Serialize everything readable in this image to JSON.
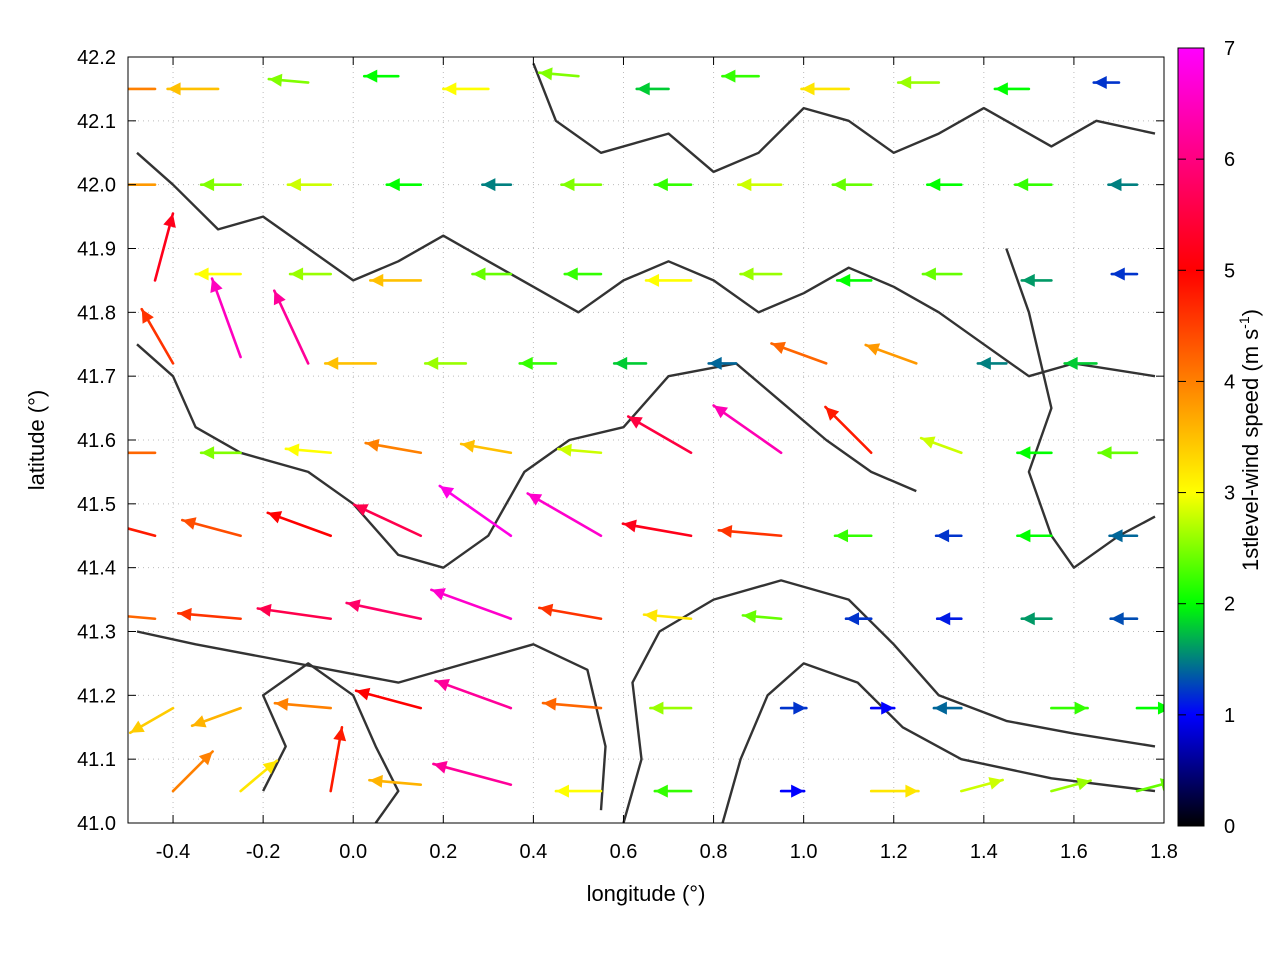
{
  "chart_data": {
    "type": "vector-field",
    "xlabel": "longitude (°)",
    "ylabel": "latitude (°)",
    "xlim": [
      -0.5,
      1.8
    ],
    "ylim": [
      41.0,
      42.2
    ],
    "xticks": [
      -0.4,
      -0.2,
      0.0,
      0.2,
      0.4,
      0.6,
      0.8,
      1.0,
      1.2,
      1.4,
      1.6,
      1.8
    ],
    "xtick_labels": [
      "-0.4",
      "-0.2",
      "0.0",
      "0.2",
      "0.4",
      "0.6",
      "0.8",
      "1.0",
      "1.2",
      "1.4",
      "1.6",
      "1.8"
    ],
    "yticks": [
      41.0,
      41.1,
      41.2,
      41.3,
      41.4,
      41.5,
      41.6,
      41.7,
      41.8,
      41.9,
      42.0,
      42.1,
      42.2
    ],
    "ytick_labels": [
      "41.0",
      "41.1",
      "41.2",
      "41.3",
      "41.4",
      "41.5",
      "41.6",
      "41.7",
      "41.8",
      "41.9",
      "42.0",
      "42.1",
      "42.2"
    ],
    "grid": true,
    "colorbar": {
      "label_text": "1stlevel-wind speed (m s",
      "label_sup": "-1",
      "label_close": ")",
      "range": [
        0,
        7
      ],
      "ticks": [
        0,
        1,
        2,
        3,
        4,
        5,
        6,
        7
      ],
      "tick_labels": [
        "0",
        "1",
        "2",
        "3",
        "4",
        "5",
        "6",
        "7"
      ],
      "colors": [
        "#000000",
        "#0000ff",
        "#00ff00",
        "#ffff00",
        "#ff8000",
        "#ff0000",
        "#ff00ff"
      ]
    },
    "vectors": [
      {
        "lon": -0.44,
        "lat": 42.15,
        "speed": 4.0,
        "dir": 180
      },
      {
        "lon": -0.3,
        "lat": 42.15,
        "speed": 3.5,
        "dir": 180
      },
      {
        "lon": -0.1,
        "lat": 42.16,
        "speed": 2.5,
        "dir": 175
      },
      {
        "lon": 0.1,
        "lat": 42.17,
        "speed": 2.0,
        "dir": 180
      },
      {
        "lon": 0.3,
        "lat": 42.15,
        "speed": 3.0,
        "dir": 180
      },
      {
        "lon": 0.5,
        "lat": 42.17,
        "speed": 2.5,
        "dir": 175
      },
      {
        "lon": 0.7,
        "lat": 42.15,
        "speed": 1.8,
        "dir": 180
      },
      {
        "lon": 0.9,
        "lat": 42.17,
        "speed": 2.2,
        "dir": 180
      },
      {
        "lon": 1.1,
        "lat": 42.15,
        "speed": 3.2,
        "dir": 180
      },
      {
        "lon": 1.3,
        "lat": 42.16,
        "speed": 2.6,
        "dir": 180
      },
      {
        "lon": 1.5,
        "lat": 42.15,
        "speed": 2.0,
        "dir": 180
      },
      {
        "lon": 1.7,
        "lat": 42.16,
        "speed": 1.2,
        "dir": 180
      },
      {
        "lon": -0.44,
        "lat": 42.0,
        "speed": 3.8,
        "dir": 180
      },
      {
        "lon": -0.25,
        "lat": 42.0,
        "speed": 2.5,
        "dir": 180
      },
      {
        "lon": -0.05,
        "lat": 42.0,
        "speed": 2.8,
        "dir": 180
      },
      {
        "lon": 0.15,
        "lat": 42.0,
        "speed": 2.0,
        "dir": 180
      },
      {
        "lon": 0.35,
        "lat": 42.0,
        "speed": 1.5,
        "dir": 180
      },
      {
        "lon": 0.55,
        "lat": 42.0,
        "speed": 2.5,
        "dir": 180
      },
      {
        "lon": 0.75,
        "lat": 42.0,
        "speed": 2.2,
        "dir": 180
      },
      {
        "lon": 0.95,
        "lat": 42.0,
        "speed": 2.8,
        "dir": 180
      },
      {
        "lon": 1.15,
        "lat": 42.0,
        "speed": 2.4,
        "dir": 180
      },
      {
        "lon": 1.35,
        "lat": 42.0,
        "speed": 2.0,
        "dir": 180
      },
      {
        "lon": 1.55,
        "lat": 42.0,
        "speed": 2.2,
        "dir": 180
      },
      {
        "lon": 1.74,
        "lat": 42.0,
        "speed": 1.5,
        "dir": 180
      },
      {
        "lon": -0.44,
        "lat": 41.85,
        "speed": 5.2,
        "dir": 75
      },
      {
        "lon": -0.25,
        "lat": 41.86,
        "speed": 3.0,
        "dir": 180
      },
      {
        "lon": -0.05,
        "lat": 41.86,
        "speed": 2.6,
        "dir": 180
      },
      {
        "lon": 0.15,
        "lat": 41.85,
        "speed": 3.5,
        "dir": 180
      },
      {
        "lon": 0.35,
        "lat": 41.86,
        "speed": 2.4,
        "dir": 180
      },
      {
        "lon": 0.55,
        "lat": 41.86,
        "speed": 2.2,
        "dir": 180
      },
      {
        "lon": 0.75,
        "lat": 41.85,
        "speed": 3.0,
        "dir": 180
      },
      {
        "lon": 0.95,
        "lat": 41.86,
        "speed": 2.6,
        "dir": 180
      },
      {
        "lon": 1.15,
        "lat": 41.85,
        "speed": 2.0,
        "dir": 180
      },
      {
        "lon": 1.35,
        "lat": 41.86,
        "speed": 2.4,
        "dir": 180
      },
      {
        "lon": 1.55,
        "lat": 41.85,
        "speed": 1.6,
        "dir": 180
      },
      {
        "lon": 1.74,
        "lat": 41.86,
        "speed": 1.2,
        "dir": 180
      },
      {
        "lon": -0.4,
        "lat": 41.72,
        "speed": 4.6,
        "dir": 120
      },
      {
        "lon": -0.25,
        "lat": 41.73,
        "speed": 6.5,
        "dir": 110
      },
      {
        "lon": -0.1,
        "lat": 41.72,
        "speed": 6.2,
        "dir": 115
      },
      {
        "lon": 0.05,
        "lat": 41.72,
        "speed": 3.5,
        "dir": 180
      },
      {
        "lon": 0.25,
        "lat": 41.72,
        "speed": 2.6,
        "dir": 180
      },
      {
        "lon": 0.45,
        "lat": 41.72,
        "speed": 2.2,
        "dir": 180
      },
      {
        "lon": 0.65,
        "lat": 41.72,
        "speed": 1.8,
        "dir": 180
      },
      {
        "lon": 0.85,
        "lat": 41.72,
        "speed": 1.4,
        "dir": 180
      },
      {
        "lon": 1.05,
        "lat": 41.72,
        "speed": 4.2,
        "dir": 160
      },
      {
        "lon": 1.25,
        "lat": 41.72,
        "speed": 3.8,
        "dir": 160
      },
      {
        "lon": 1.45,
        "lat": 41.72,
        "speed": 1.5,
        "dir": 180
      },
      {
        "lon": 1.65,
        "lat": 41.72,
        "speed": 1.8,
        "dir": 180
      },
      {
        "lon": -0.44,
        "lat": 41.58,
        "speed": 4.2,
        "dir": 180
      },
      {
        "lon": -0.25,
        "lat": 41.58,
        "speed": 2.5,
        "dir": 180
      },
      {
        "lon": -0.05,
        "lat": 41.58,
        "speed": 3.0,
        "dir": 175
      },
      {
        "lon": 0.15,
        "lat": 41.58,
        "speed": 4.0,
        "dir": 170
      },
      {
        "lon": 0.35,
        "lat": 41.58,
        "speed": 3.5,
        "dir": 170
      },
      {
        "lon": 0.55,
        "lat": 41.58,
        "speed": 2.8,
        "dir": 175
      },
      {
        "lon": 0.75,
        "lat": 41.58,
        "speed": 5.5,
        "dir": 150
      },
      {
        "lon": 0.95,
        "lat": 41.58,
        "speed": 6.4,
        "dir": 145
      },
      {
        "lon": 1.15,
        "lat": 41.58,
        "speed": 4.8,
        "dir": 135
      },
      {
        "lon": 1.35,
        "lat": 41.58,
        "speed": 2.8,
        "dir": 160
      },
      {
        "lon": 1.55,
        "lat": 41.58,
        "speed": 2.0,
        "dir": 180
      },
      {
        "lon": 1.74,
        "lat": 41.58,
        "speed": 2.4,
        "dir": 180
      },
      {
        "lon": -0.44,
        "lat": 41.45,
        "speed": 4.8,
        "dir": 165
      },
      {
        "lon": -0.25,
        "lat": 41.45,
        "speed": 4.4,
        "dir": 165
      },
      {
        "lon": -0.05,
        "lat": 41.45,
        "speed": 5.0,
        "dir": 160
      },
      {
        "lon": 0.15,
        "lat": 41.45,
        "speed": 5.6,
        "dir": 155
      },
      {
        "lon": 0.35,
        "lat": 41.45,
        "speed": 6.8,
        "dir": 145
      },
      {
        "lon": 0.55,
        "lat": 41.45,
        "speed": 6.6,
        "dir": 150
      },
      {
        "lon": 0.75,
        "lat": 41.45,
        "speed": 5.2,
        "dir": 170
      },
      {
        "lon": 0.95,
        "lat": 41.45,
        "speed": 4.6,
        "dir": 175
      },
      {
        "lon": 1.15,
        "lat": 41.45,
        "speed": 2.2,
        "dir": 180
      },
      {
        "lon": 1.35,
        "lat": 41.45,
        "speed": 1.2,
        "dir": 180
      },
      {
        "lon": 1.55,
        "lat": 41.45,
        "speed": 2.0,
        "dir": 180
      },
      {
        "lon": 1.74,
        "lat": 41.45,
        "speed": 1.4,
        "dir": 180
      },
      {
        "lon": -0.44,
        "lat": 41.32,
        "speed": 4.2,
        "dir": 175
      },
      {
        "lon": -0.25,
        "lat": 41.32,
        "speed": 4.6,
        "dir": 175
      },
      {
        "lon": -0.05,
        "lat": 41.32,
        "speed": 5.6,
        "dir": 172
      },
      {
        "lon": 0.15,
        "lat": 41.32,
        "speed": 5.8,
        "dir": 168
      },
      {
        "lon": 0.35,
        "lat": 41.32,
        "speed": 6.6,
        "dir": 160
      },
      {
        "lon": 0.55,
        "lat": 41.32,
        "speed": 4.6,
        "dir": 170
      },
      {
        "lon": 0.75,
        "lat": 41.32,
        "speed": 3.2,
        "dir": 175
      },
      {
        "lon": 0.95,
        "lat": 41.32,
        "speed": 2.4,
        "dir": 175
      },
      {
        "lon": 1.15,
        "lat": 41.32,
        "speed": 1.2,
        "dir": 180
      },
      {
        "lon": 1.35,
        "lat": 41.32,
        "speed": 1.1,
        "dir": 180
      },
      {
        "lon": 1.55,
        "lat": 41.32,
        "speed": 1.6,
        "dir": 180
      },
      {
        "lon": 1.74,
        "lat": 41.32,
        "speed": 1.3,
        "dir": 180
      },
      {
        "lon": -0.4,
        "lat": 41.18,
        "speed": 3.4,
        "dir": 210
      },
      {
        "lon": -0.25,
        "lat": 41.18,
        "speed": 3.6,
        "dir": 200
      },
      {
        "lon": -0.05,
        "lat": 41.18,
        "speed": 4.0,
        "dir": 175
      },
      {
        "lon": 0.15,
        "lat": 41.18,
        "speed": 5.0,
        "dir": 165
      },
      {
        "lon": 0.35,
        "lat": 41.18,
        "speed": 6.2,
        "dir": 160
      },
      {
        "lon": 0.55,
        "lat": 41.18,
        "speed": 4.2,
        "dir": 175
      },
      {
        "lon": 0.75,
        "lat": 41.18,
        "speed": 2.6,
        "dir": 180
      },
      {
        "lon": 0.95,
        "lat": 41.18,
        "speed": 1.2,
        "dir": 0
      },
      {
        "lon": 1.15,
        "lat": 41.18,
        "speed": 1.0,
        "dir": 0
      },
      {
        "lon": 1.35,
        "lat": 41.18,
        "speed": 1.4,
        "dir": 180
      },
      {
        "lon": 1.55,
        "lat": 41.18,
        "speed": 2.2,
        "dir": 0
      },
      {
        "lon": 1.74,
        "lat": 41.18,
        "speed": 2.0,
        "dir": 0
      },
      {
        "lon": -0.4,
        "lat": 41.05,
        "speed": 4.0,
        "dir": 45
      },
      {
        "lon": -0.25,
        "lat": 41.05,
        "speed": 3.2,
        "dir": 40
      },
      {
        "lon": -0.05,
        "lat": 41.05,
        "speed": 4.8,
        "dir": 80
      },
      {
        "lon": 0.15,
        "lat": 41.06,
        "speed": 3.6,
        "dir": 175
      },
      {
        "lon": 0.35,
        "lat": 41.06,
        "speed": 6.2,
        "dir": 165
      },
      {
        "lon": 0.55,
        "lat": 41.05,
        "speed": 3.0,
        "dir": 180
      },
      {
        "lon": 0.75,
        "lat": 41.05,
        "speed": 2.2,
        "dir": 180
      },
      {
        "lon": 0.95,
        "lat": 41.05,
        "speed": 1.0,
        "dir": 0
      },
      {
        "lon": 1.15,
        "lat": 41.05,
        "speed": 3.2,
        "dir": 0
      },
      {
        "lon": 1.35,
        "lat": 41.05,
        "speed": 2.8,
        "dir": 15
      },
      {
        "lon": 1.55,
        "lat": 41.05,
        "speed": 2.6,
        "dir": 15
      },
      {
        "lon": 1.74,
        "lat": 41.05,
        "speed": 2.4,
        "dir": 15
      }
    ],
    "contours": [
      [
        [
          -0.48,
          41.75
        ],
        [
          -0.4,
          41.7
        ],
        [
          -0.35,
          41.62
        ],
        [
          -0.25,
          41.58
        ],
        [
          -0.1,
          41.55
        ],
        [
          0.0,
          41.5
        ],
        [
          0.1,
          41.42
        ],
        [
          0.2,
          41.4
        ],
        [
          0.3,
          41.45
        ],
        [
          0.38,
          41.55
        ],
        [
          0.48,
          41.6
        ],
        [
          0.6,
          41.62
        ],
        [
          0.7,
          41.7
        ],
        [
          0.85,
          41.72
        ],
        [
          0.95,
          41.66
        ],
        [
          1.05,
          41.6
        ],
        [
          1.15,
          41.55
        ],
        [
          1.25,
          41.52
        ]
      ],
      [
        [
          -0.48,
          41.3
        ],
        [
          -0.35,
          41.28
        ],
        [
          -0.2,
          41.26
        ],
        [
          -0.05,
          41.24
        ],
        [
          0.1,
          41.22
        ],
        [
          0.25,
          41.25
        ],
        [
          0.4,
          41.28
        ],
        [
          0.52,
          41.24
        ],
        [
          0.56,
          41.12
        ],
        [
          0.55,
          41.02
        ]
      ],
      [
        [
          0.6,
          41.0
        ],
        [
          0.64,
          41.1
        ],
        [
          0.62,
          41.22
        ],
        [
          0.68,
          41.3
        ],
        [
          0.8,
          41.35
        ],
        [
          0.95,
          41.38
        ],
        [
          1.1,
          41.35
        ],
        [
          1.2,
          41.28
        ],
        [
          1.3,
          41.2
        ],
        [
          1.45,
          41.16
        ],
        [
          1.6,
          41.14
        ],
        [
          1.78,
          41.12
        ]
      ],
      [
        [
          0.82,
          41.0
        ],
        [
          0.86,
          41.1
        ],
        [
          0.92,
          41.2
        ],
        [
          1.0,
          41.25
        ],
        [
          1.12,
          41.22
        ],
        [
          1.22,
          41.15
        ],
        [
          1.35,
          41.1
        ],
        [
          1.55,
          41.07
        ],
        [
          1.78,
          41.05
        ]
      ],
      [
        [
          0.4,
          42.19
        ],
        [
          0.45,
          42.1
        ],
        [
          0.55,
          42.05
        ],
        [
          0.7,
          42.08
        ],
        [
          0.8,
          42.02
        ],
        [
          0.9,
          42.05
        ],
        [
          1.0,
          42.12
        ],
        [
          1.1,
          42.1
        ],
        [
          1.2,
          42.05
        ],
        [
          1.3,
          42.08
        ],
        [
          1.4,
          42.12
        ],
        [
          1.55,
          42.06
        ],
        [
          1.65,
          42.1
        ],
        [
          1.78,
          42.08
        ]
      ],
      [
        [
          -0.48,
          42.05
        ],
        [
          -0.4,
          42.0
        ],
        [
          -0.3,
          41.93
        ],
        [
          -0.2,
          41.95
        ],
        [
          -0.1,
          41.9
        ],
        [
          0.0,
          41.85
        ],
        [
          0.1,
          41.88
        ],
        [
          0.2,
          41.92
        ],
        [
          0.3,
          41.88
        ],
        [
          0.4,
          41.84
        ],
        [
          0.5,
          41.8
        ],
        [
          0.6,
          41.85
        ],
        [
          0.7,
          41.88
        ],
        [
          0.8,
          41.85
        ],
        [
          0.9,
          41.8
        ],
        [
          1.0,
          41.83
        ],
        [
          1.1,
          41.87
        ],
        [
          1.2,
          41.84
        ],
        [
          1.3,
          41.8
        ],
        [
          1.4,
          41.75
        ],
        [
          1.5,
          41.7
        ],
        [
          1.6,
          41.72
        ],
        [
          1.78,
          41.7
        ]
      ],
      [
        [
          -0.2,
          41.05
        ],
        [
          -0.15,
          41.12
        ],
        [
          -0.2,
          41.2
        ],
        [
          -0.1,
          41.25
        ],
        [
          0.0,
          41.2
        ],
        [
          0.05,
          41.12
        ],
        [
          0.1,
          41.05
        ],
        [
          0.05,
          41.0
        ]
      ],
      [
        [
          1.45,
          41.9
        ],
        [
          1.5,
          41.8
        ],
        [
          1.55,
          41.65
        ],
        [
          1.5,
          41.55
        ],
        [
          1.55,
          41.45
        ],
        [
          1.6,
          41.4
        ],
        [
          1.7,
          41.45
        ],
        [
          1.78,
          41.48
        ]
      ]
    ]
  }
}
